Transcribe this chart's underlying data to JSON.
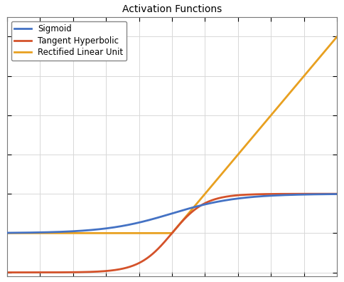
{
  "title": "Activation Functions",
  "x_min": -5,
  "x_max": 5,
  "y_min": -1.1,
  "y_max": 5.5,
  "sigmoid_color": "#4472C4",
  "tanh_color": "#D4522A",
  "relu_color": "#E8A020",
  "sigmoid_label": "Sigmoid",
  "tanh_label": "Tangent Hyperbolic",
  "relu_label": "Rectified Linear Unit",
  "line_width": 2.0,
  "grid_color": "#D8D8D8",
  "background_color": "#FFFFFF",
  "title_fontsize": 10,
  "legend_fontsize": 8.5,
  "tick_fontsize": 8
}
